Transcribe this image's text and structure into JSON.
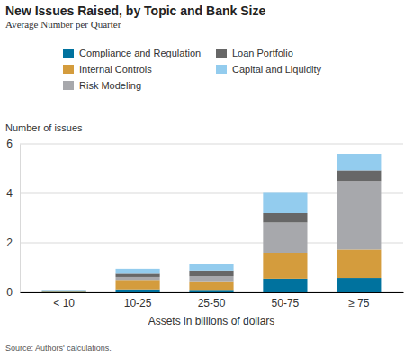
{
  "chart_data": {
    "type": "bar",
    "title": "New Issues Raised, by Topic and Bank Size",
    "subtitle": "Average Number per Quarter",
    "y_label": "Number of issues",
    "x_label": "Assets in billions of dollars",
    "source": "Source: Authors' calculations.",
    "categories": [
      "< 10",
      "10-25",
      "25-50",
      "50-75",
      "≥ 75"
    ],
    "series": [
      {
        "name": "Compliance and Regulation",
        "color": "#00729e",
        "values": [
          0.02,
          0.12,
          0.1,
          0.55,
          0.58
        ]
      },
      {
        "name": "Internal Controls",
        "color": "#d49c3d",
        "values": [
          0.04,
          0.38,
          0.35,
          1.05,
          1.15
        ]
      },
      {
        "name": "Risk Modeling",
        "color": "#a7a8ac",
        "values": [
          0.01,
          0.12,
          0.2,
          1.22,
          2.77
        ]
      },
      {
        "name": "Loan Portfolio",
        "color": "#676767",
        "values": [
          0.01,
          0.13,
          0.23,
          0.38,
          0.43
        ]
      },
      {
        "name": "Capital and Liquidity",
        "color": "#93ccee",
        "values": [
          0.02,
          0.2,
          0.27,
          0.82,
          0.67
        ]
      }
    ],
    "ylim": [
      0,
      6
    ],
    "yticks": [
      0,
      2,
      4,
      6
    ],
    "grid": true,
    "stacked": true,
    "legend": "top"
  }
}
